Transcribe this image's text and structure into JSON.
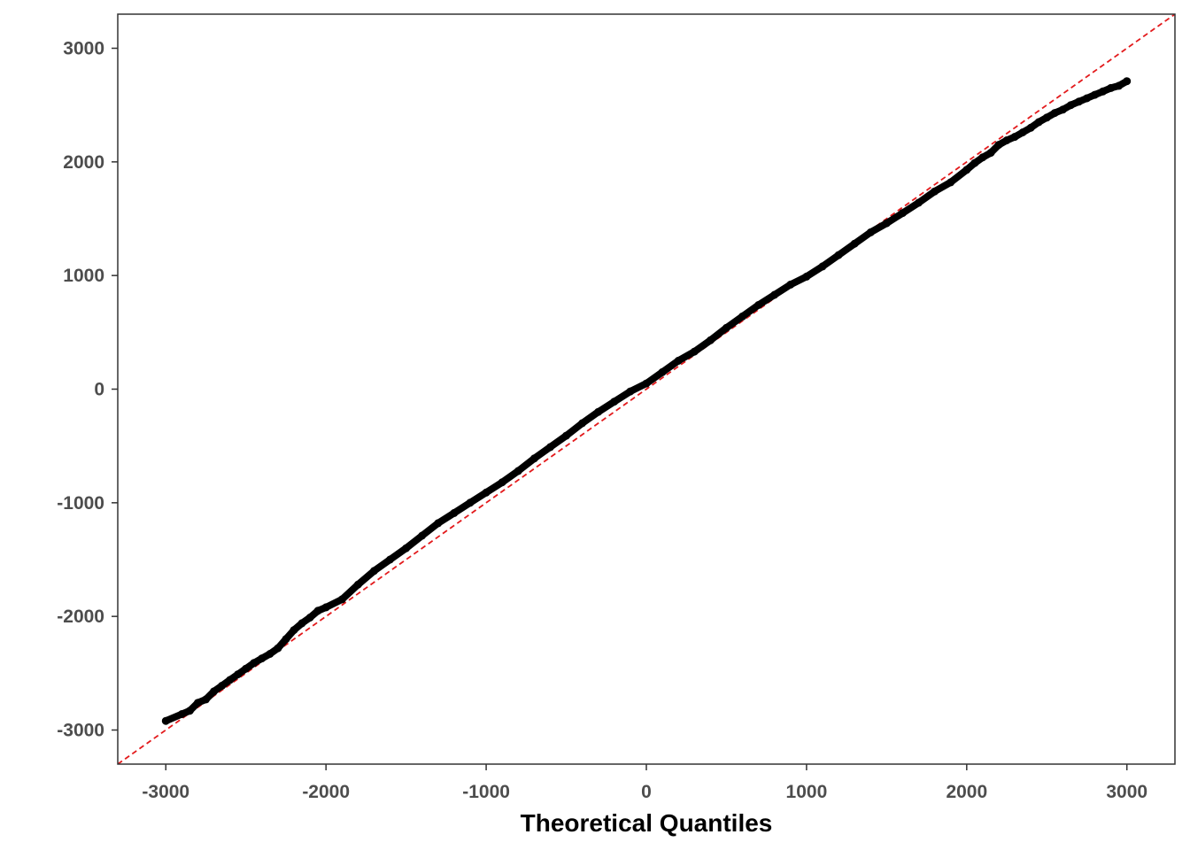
{
  "chart_data": {
    "type": "scatter",
    "title": "",
    "xlabel": "Theoretical Quantiles",
    "ylabel": "",
    "xlim": [
      -3300,
      3300
    ],
    "ylim": [
      -3300,
      3300
    ],
    "x_ticks": [
      -3000,
      -2000,
      -1000,
      0,
      1000,
      2000,
      3000
    ],
    "y_ticks": [
      -3000,
      -2000,
      -1000,
      0,
      1000,
      2000,
      3000
    ],
    "grid": false,
    "reference_line": {
      "slope": 1,
      "intercept": 0,
      "style": "dashed",
      "color": "#e31a1c"
    },
    "point_color": "#000000",
    "series": [
      {
        "x": [
          -3000,
          -2900,
          -2850,
          -2800,
          -2750,
          -2700,
          -2650,
          -2600,
          -2550,
          -2500,
          -2450,
          -2400,
          -2350,
          -2300,
          -2250,
          -2200,
          -2150,
          -2100,
          -2050,
          -2000,
          -1900,
          -1800,
          -1700,
          -1600,
          -1500,
          -1400,
          -1300,
          -1200,
          -1100,
          -1000,
          -900,
          -800,
          -700,
          -600,
          -500,
          -400,
          -300,
          -200,
          -100,
          0,
          100,
          200,
          300,
          400,
          500,
          600,
          700,
          800,
          900,
          1000,
          1100,
          1200,
          1300,
          1400,
          1500,
          1600,
          1700,
          1800,
          1900,
          2000,
          2050,
          2100,
          2150,
          2200,
          2250,
          2300,
          2350,
          2400,
          2450,
          2500,
          2550,
          2600,
          2650,
          2700,
          2750,
          2800,
          2850,
          2900,
          2950,
          3000
        ],
        "y": [
          -2920,
          -2860,
          -2830,
          -2760,
          -2730,
          -2660,
          -2610,
          -2560,
          -2510,
          -2460,
          -2410,
          -2370,
          -2330,
          -2280,
          -2200,
          -2120,
          -2060,
          -2010,
          -1950,
          -1920,
          -1850,
          -1720,
          -1600,
          -1500,
          -1400,
          -1290,
          -1180,
          -1090,
          -1000,
          -910,
          -820,
          -720,
          -610,
          -510,
          -410,
          -300,
          -200,
          -110,
          -20,
          50,
          150,
          250,
          330,
          430,
          540,
          640,
          740,
          830,
          920,
          990,
          1080,
          1180,
          1280,
          1380,
          1460,
          1550,
          1640,
          1740,
          1820,
          1930,
          1990,
          2040,
          2080,
          2150,
          2190,
          2220,
          2260,
          2300,
          2350,
          2390,
          2430,
          2460,
          2500,
          2530,
          2560,
          2590,
          2620,
          2650,
          2670,
          2710
        ]
      }
    ]
  }
}
